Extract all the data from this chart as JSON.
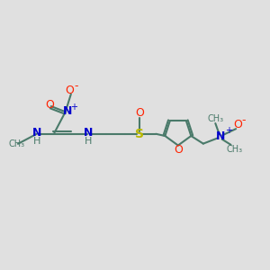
{
  "bg_color": "#e0e0e0",
  "bond_color": "#4a7a6a",
  "bond_width": 1.5,
  "atoms": {
    "N_blue": "#0000cc",
    "O_red": "#ff2200",
    "S_yellow": "#b8b800",
    "C_gray": "#4a7a6a"
  },
  "figsize": [
    3.0,
    3.0
  ],
  "dpi": 100,
  "xlim": [
    0,
    12
  ],
  "ylim": [
    2,
    9
  ]
}
